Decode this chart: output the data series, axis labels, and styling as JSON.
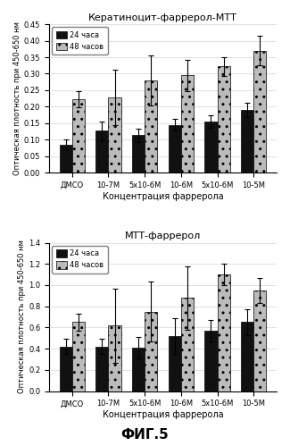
{
  "chart1": {
    "title": "Кератиноцит-фаррерол-МТТ",
    "ylabel": "Оптическая плотность при 450-650 нм",
    "xlabel": "Концентрация фаррерола",
    "categories": [
      "ДМСО",
      "10-7М",
      "5х10-6М",
      "10-6М",
      "5х10-6М",
      "10-5М"
    ],
    "bar24": [
      0.085,
      0.127,
      0.113,
      0.145,
      0.155,
      0.19
    ],
    "bar48": [
      0.222,
      0.228,
      0.28,
      0.295,
      0.322,
      0.37
    ],
    "err24": [
      0.015,
      0.028,
      0.02,
      0.018,
      0.02,
      0.022
    ],
    "err48": [
      0.025,
      0.085,
      0.075,
      0.048,
      0.028,
      0.045
    ],
    "ylim": [
      0,
      0.45
    ],
    "yticks": [
      0.0,
      0.05,
      0.1,
      0.15,
      0.2,
      0.25,
      0.3,
      0.35,
      0.4,
      0.45
    ]
  },
  "chart2": {
    "title": "МТТ-фаррерол",
    "ylabel": "Оптическая плотность при 450-650 нм",
    "xlabel": "Концентрация фаррерола",
    "categories": [
      "ДМСО",
      "10-7М",
      "5х10-6М",
      "10-6М",
      "5х10-6М",
      "10-5М"
    ],
    "bar24": [
      0.42,
      0.42,
      0.41,
      0.52,
      0.57,
      0.65
    ],
    "bar48": [
      0.65,
      0.62,
      0.75,
      0.88,
      1.1,
      0.95
    ],
    "err24": [
      0.07,
      0.07,
      0.1,
      0.17,
      0.1,
      0.12
    ],
    "err48": [
      0.08,
      0.35,
      0.28,
      0.3,
      0.1,
      0.12
    ],
    "ylim": [
      0,
      1.4
    ],
    "yticks": [
      0,
      0.2,
      0.4,
      0.6,
      0.8,
      1.0,
      1.2,
      1.4
    ]
  },
  "color24": "#111111",
  "color48": "#bbbbbb",
  "hatch48": "..",
  "legend24": "24 часа",
  "legend48": "48 часов",
  "fig_label": "ФИГ.5",
  "bar_width": 0.35,
  "label_fontsize": 7,
  "title_fontsize": 8,
  "tick_fontsize": 6,
  "ylabel_fontsize": 6
}
